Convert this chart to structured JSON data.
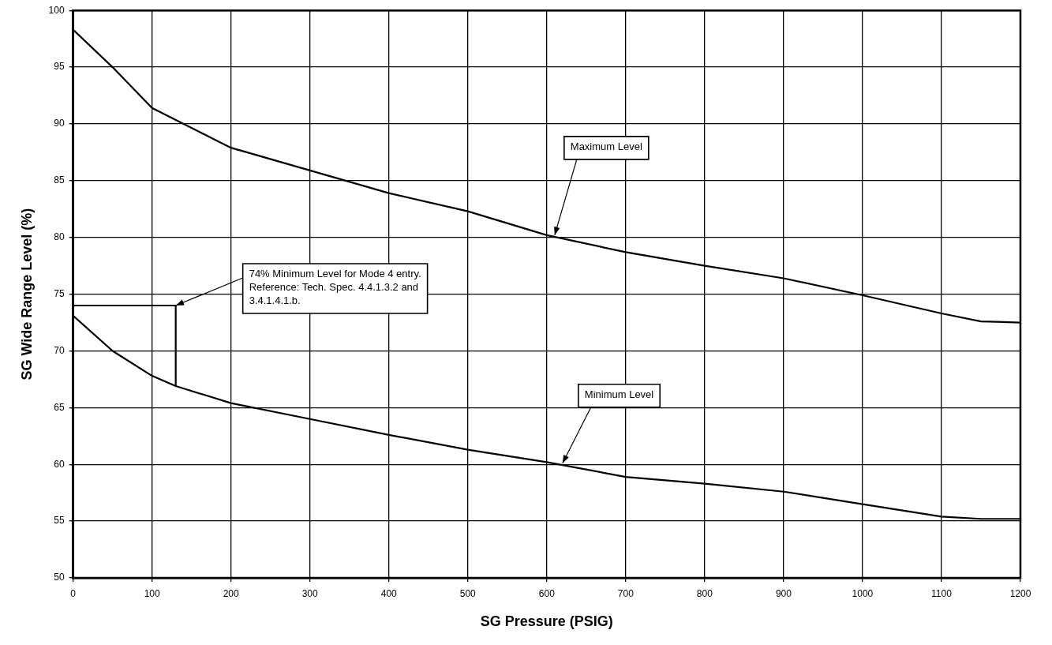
{
  "chart_data": {
    "type": "line",
    "xlabel": "SG Pressure (PSIG)",
    "ylabel": "SG Wide Range Level (%)",
    "xlim": [
      0,
      1200
    ],
    "ylim": [
      50,
      100
    ],
    "xticks": [
      0,
      100,
      200,
      300,
      400,
      500,
      600,
      700,
      800,
      900,
      1000,
      1100,
      1200
    ],
    "yticks": [
      50,
      55,
      60,
      65,
      70,
      75,
      80,
      85,
      90,
      95,
      100
    ],
    "grid": true,
    "legend": false,
    "marker": "none",
    "line_style": "solid",
    "series": [
      {
        "color": "#000000",
        "x": [
          0,
          50,
          100,
          200,
          300,
          400,
          500,
          600,
          700,
          800,
          900,
          1000,
          1100,
          1150,
          1200
        ],
        "values": [
          98.3,
          95,
          91.4,
          87.9,
          85.9,
          83.9,
          82.3,
          80.2,
          78.7,
          77.5,
          76.4,
          74.9,
          73.3,
          72.6,
          72.5
        ]
      },
      {
        "color": "#000000",
        "x": [
          0,
          50,
          100,
          130,
          200,
          300,
          400,
          500,
          600,
          700,
          800,
          900,
          1000,
          1100,
          1150,
          1200
        ],
        "values": [
          73.1,
          70,
          67.8,
          66.9,
          65.4,
          64,
          62.6,
          61.3,
          60.2,
          58.9,
          58.3,
          57.6,
          56.5,
          55.4,
          55.2,
          55.2
        ]
      },
      {
        "color": "#000000",
        "x": [
          0,
          130,
          130
        ],
        "values": [
          74,
          74,
          66.9
        ]
      }
    ],
    "annotations": [
      {
        "text": "Maximum Level",
        "x": 610,
        "y": 80.2
      },
      {
        "text": "Minimum Level",
        "x": 620,
        "y": 60.1
      },
      {
        "text": "74% Minimum Level for Mode 4 entry. Reference: Tech. Spec. 4.4.1.3.2 and 3.4.1.4.1.b.",
        "x": 130,
        "y": 74
      }
    ]
  }
}
